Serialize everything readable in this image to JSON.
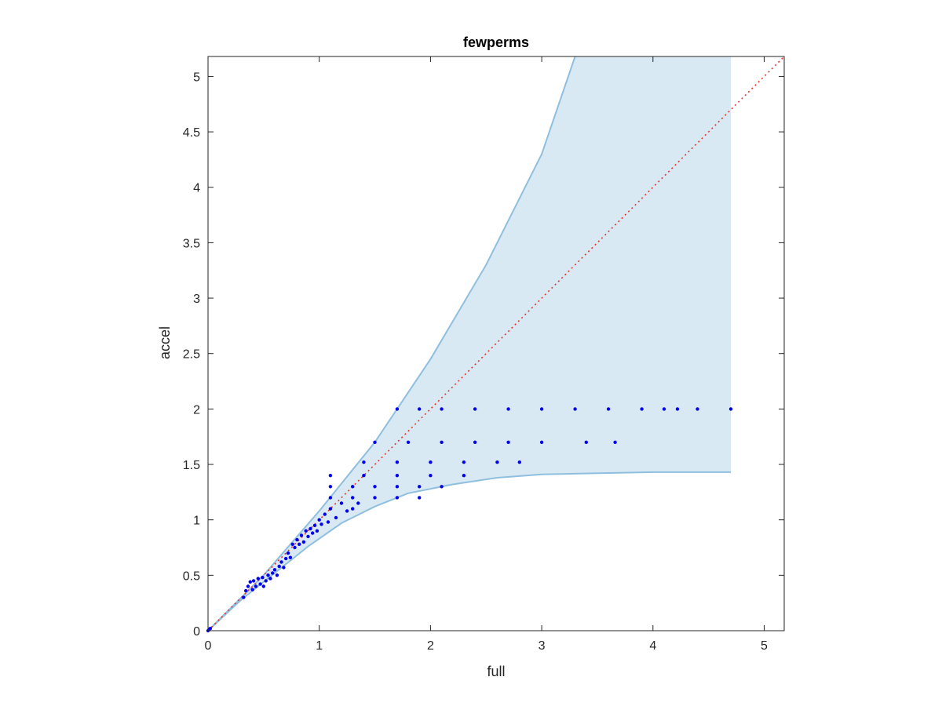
{
  "chart_data": {
    "type": "scatter",
    "title": "fewperms",
    "xlabel": "full",
    "ylabel": "accel",
    "xlim": [
      0,
      5.18
    ],
    "ylim": [
      0,
      5.18
    ],
    "xticks": [
      0,
      1,
      2,
      3,
      4,
      5
    ],
    "xtick_labels": [
      "0",
      "1",
      "2",
      "3",
      "4",
      "5"
    ],
    "yticks": [
      0,
      0.5,
      1,
      1.5,
      2,
      2.5,
      3,
      3.5,
      4,
      4.5,
      5
    ],
    "ytick_labels": [
      "0",
      "0.5",
      "1",
      "1.5",
      "2",
      "2.5",
      "3",
      "3.5",
      "4",
      "4.5",
      "5"
    ],
    "grid": false,
    "colors": {
      "points": "#0000ee",
      "band_fill": "#d9e9f4",
      "band_edge": "#8fbfdf",
      "reference_line": "#e8322b",
      "axes": "#262626"
    },
    "band": {
      "upper": [
        [
          0,
          0
        ],
        [
          0.5,
          0.5
        ],
        [
          1,
          1.08
        ],
        [
          1.5,
          1.7
        ],
        [
          2,
          2.45
        ],
        [
          2.5,
          3.3
        ],
        [
          3,
          4.3
        ],
        [
          3.3,
          5.18
        ],
        [
          4.7,
          5.18
        ]
      ],
      "lower": [
        [
          0,
          0
        ],
        [
          0.3,
          0.28
        ],
        [
          0.6,
          0.52
        ],
        [
          0.9,
          0.76
        ],
        [
          1.2,
          0.97
        ],
        [
          1.5,
          1.12
        ],
        [
          1.8,
          1.24
        ],
        [
          2.2,
          1.32
        ],
        [
          2.6,
          1.38
        ],
        [
          3.0,
          1.41
        ],
        [
          3.5,
          1.42
        ],
        [
          4.0,
          1.43
        ],
        [
          4.7,
          1.43
        ]
      ]
    },
    "reference_line": [
      [
        0,
        0
      ],
      [
        5.18,
        5.18
      ]
    ],
    "series": [
      {
        "points": [
          [
            0,
            0
          ],
          [
            0.01,
            0.01
          ],
          [
            0.02,
            0.02
          ],
          [
            0.32,
            0.3
          ],
          [
            0.34,
            0.36
          ],
          [
            0.36,
            0.4
          ],
          [
            0.38,
            0.44
          ],
          [
            0.4,
            0.37
          ],
          [
            0.41,
            0.45
          ],
          [
            0.43,
            0.4
          ],
          [
            0.45,
            0.47
          ],
          [
            0.47,
            0.42
          ],
          [
            0.49,
            0.48
          ],
          [
            0.5,
            0.4
          ],
          [
            0.52,
            0.45
          ],
          [
            0.54,
            0.5
          ],
          [
            0.56,
            0.47
          ],
          [
            0.58,
            0.52
          ],
          [
            0.6,
            0.55
          ],
          [
            0.62,
            0.5
          ],
          [
            0.64,
            0.58
          ],
          [
            0.66,
            0.62
          ],
          [
            0.68,
            0.57
          ],
          [
            0.7,
            0.65
          ],
          [
            0.72,
            0.7
          ],
          [
            0.74,
            0.66
          ],
          [
            0.76,
            0.78
          ],
          [
            0.78,
            0.75
          ],
          [
            0.8,
            0.82
          ],
          [
            0.82,
            0.78
          ],
          [
            0.84,
            0.86
          ],
          [
            0.86,
            0.8
          ],
          [
            0.88,
            0.9
          ],
          [
            0.9,
            0.85
          ],
          [
            0.92,
            0.92
          ],
          [
            0.94,
            0.88
          ],
          [
            0.96,
            0.95
          ],
          [
            0.98,
            0.9
          ],
          [
            1.0,
            1.0
          ],
          [
            1.02,
            0.96
          ],
          [
            1.05,
            1.05
          ],
          [
            1.08,
            0.98
          ],
          [
            1.1,
            1.1
          ],
          [
            1.15,
            1.02
          ],
          [
            1.2,
            1.15
          ],
          [
            1.25,
            1.08
          ],
          [
            1.3,
            1.1
          ],
          [
            1.35,
            1.15
          ],
          [
            1.1,
            1.2
          ],
          [
            1.3,
            1.2
          ],
          [
            1.5,
            1.2
          ],
          [
            1.7,
            1.2
          ],
          [
            1.9,
            1.2
          ],
          [
            1.1,
            1.3
          ],
          [
            1.3,
            1.3
          ],
          [
            1.5,
            1.3
          ],
          [
            1.7,
            1.3
          ],
          [
            1.9,
            1.3
          ],
          [
            2.1,
            1.3
          ],
          [
            1.1,
            1.4
          ],
          [
            1.4,
            1.4
          ],
          [
            1.7,
            1.4
          ],
          [
            2.0,
            1.4
          ],
          [
            2.3,
            1.4
          ],
          [
            1.4,
            1.52
          ],
          [
            1.7,
            1.52
          ],
          [
            2.0,
            1.52
          ],
          [
            2.3,
            1.52
          ],
          [
            2.6,
            1.52
          ],
          [
            2.8,
            1.52
          ],
          [
            1.5,
            1.7
          ],
          [
            1.8,
            1.7
          ],
          [
            2.1,
            1.7
          ],
          [
            2.4,
            1.7
          ],
          [
            2.7,
            1.7
          ],
          [
            3.0,
            1.7
          ],
          [
            3.4,
            1.7
          ],
          [
            3.66,
            1.7
          ],
          [
            1.7,
            2.0
          ],
          [
            1.9,
            2.0
          ],
          [
            2.1,
            2.0
          ],
          [
            2.4,
            2.0
          ],
          [
            2.7,
            2.0
          ],
          [
            3.0,
            2.0
          ],
          [
            3.3,
            2.0
          ],
          [
            3.6,
            2.0
          ],
          [
            3.9,
            2.0
          ],
          [
            4.1,
            2.0
          ],
          [
            4.22,
            2.0
          ],
          [
            4.4,
            2.0
          ],
          [
            4.7,
            2.0
          ]
        ]
      }
    ]
  }
}
